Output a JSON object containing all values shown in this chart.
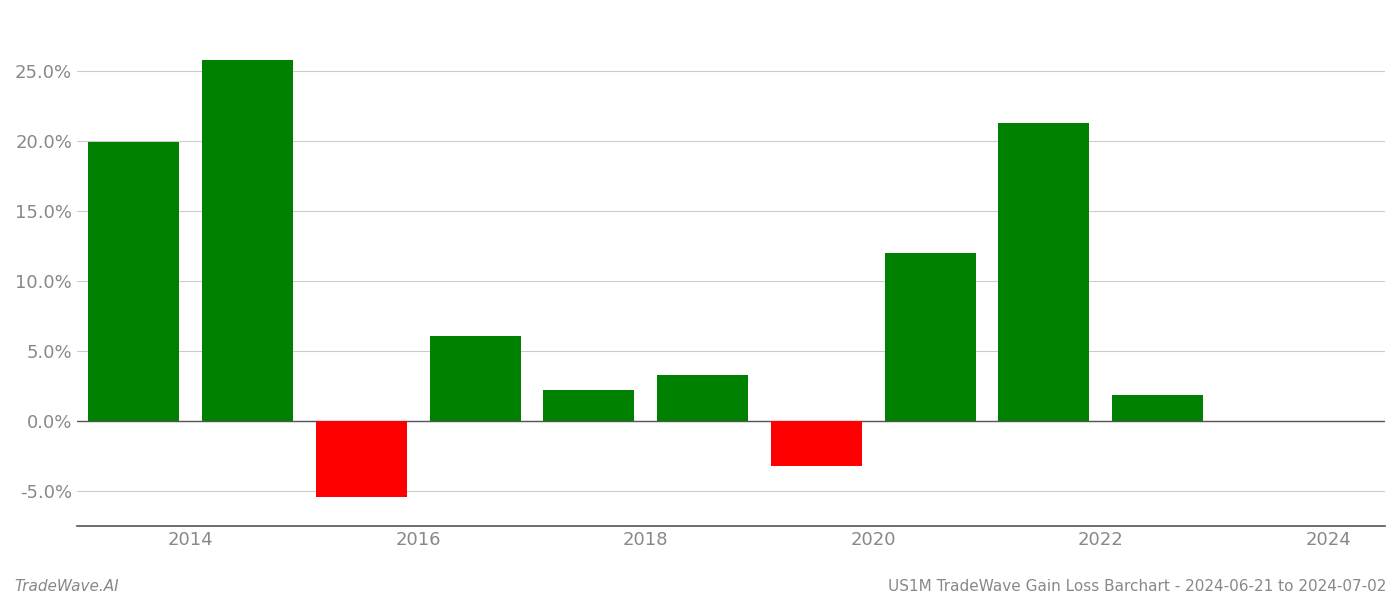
{
  "years": [
    2013.5,
    2014.5,
    2015.5,
    2016.5,
    2017.5,
    2018.5,
    2019.5,
    2020.5,
    2021.5,
    2022.5,
    2023.5
  ],
  "values": [
    0.199,
    0.258,
    -0.054,
    0.061,
    0.022,
    0.033,
    -0.032,
    0.12,
    0.213,
    0.019,
    0.0
  ],
  "bar_colors": [
    "#008000",
    "#008000",
    "#ff0000",
    "#008000",
    "#008000",
    "#008000",
    "#ff0000",
    "#008000",
    "#008000",
    "#008000",
    "#008000"
  ],
  "xlim": [
    2013.0,
    2024.5
  ],
  "ylim": [
    -0.075,
    0.29
  ],
  "yticks": [
    -0.05,
    0.0,
    0.05,
    0.1,
    0.15,
    0.2,
    0.25
  ],
  "xticks": [
    2014,
    2016,
    2018,
    2020,
    2022,
    2024
  ],
  "bar_width": 0.8,
  "footer_left": "TradeWave.AI",
  "footer_right": "US1M TradeWave Gain Loss Barchart - 2024-06-21 to 2024-07-02",
  "background_color": "#ffffff",
  "grid_color": "#cccccc",
  "axis_color": "#555555",
  "tick_color": "#888888",
  "zero_line_color": "#555555"
}
